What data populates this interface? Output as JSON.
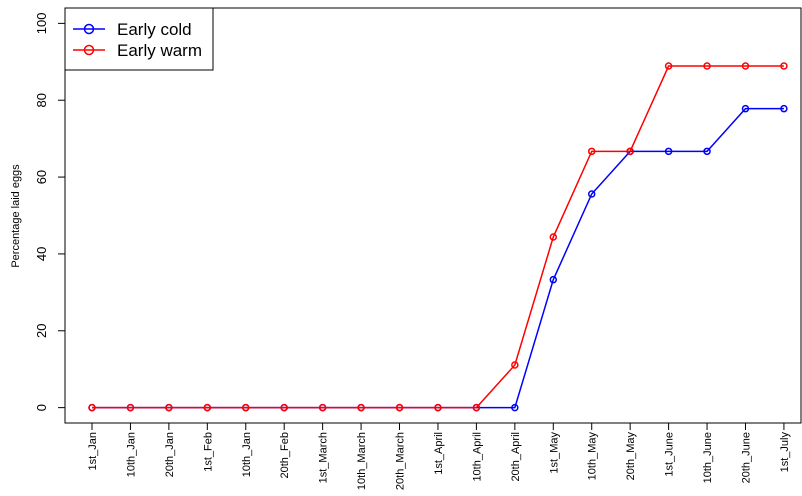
{
  "chart_data": {
    "type": "line",
    "y_label": "Percentage laid eggs",
    "categories": [
      "1st_Jan",
      "10th_Jan",
      "20th_Jan",
      "1st_Feb",
      "10th_Jan",
      "20th_Feb",
      "1st_March",
      "10th_March",
      "20th_March",
      "1st_April",
      "10th_April",
      "20th_April",
      "1st_May",
      "10th_May",
      "20th_May",
      "1st_June",
      "10th_June",
      "20th_June",
      "1st_July"
    ],
    "series": [
      {
        "name": "Early cold",
        "color": "#0000ff",
        "values": [
          0,
          0,
          0,
          0,
          0,
          0,
          0,
          0,
          0,
          0,
          0,
          0,
          33.3,
          55.6,
          66.7,
          66.7,
          66.7,
          77.8,
          77.8
        ]
      },
      {
        "name": "Early warm",
        "color": "#ff0000",
        "values": [
          0,
          0,
          0,
          0,
          0,
          0,
          0,
          0,
          0,
          0,
          0,
          11.1,
          44.4,
          66.7,
          66.7,
          88.9,
          88.9,
          88.9,
          88.9
        ]
      }
    ],
    "ylim": [
      -4,
      104
    ],
    "yticks": [
      0,
      20,
      40,
      60,
      80,
      100
    ],
    "legend": "top-left"
  }
}
